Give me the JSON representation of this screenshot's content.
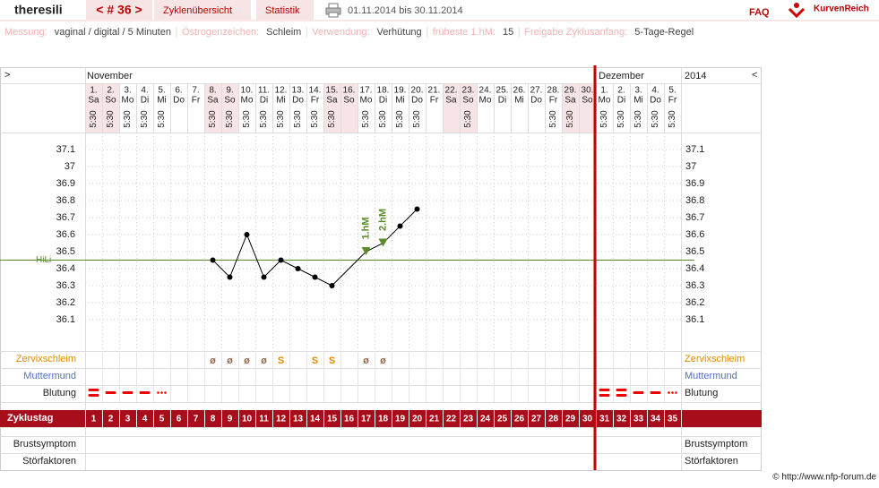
{
  "header": {
    "user": "theresili",
    "cycle_nav": "< # 36 >",
    "tabs": [
      "Zyklenübersicht",
      "Statistik"
    ],
    "period": "01.11.2014 bis 30.11.2014",
    "faq": "FAQ",
    "logo": "KurvenReich"
  },
  "settings": [
    {
      "label": "Messung:",
      "value": "vaginal / digital / 5 Minuten"
    },
    {
      "label": "Östrogenzeichen:",
      "value": "Schleim"
    },
    {
      "label": "Verwendung:",
      "value": "Verhütung"
    },
    {
      "label": "früheste 1.hM:",
      "value": 15
    },
    {
      "label": "Freigabe Zyklusanfang:",
      "value": "5-Tage-Regel"
    }
  ],
  "table": {
    "expand_left": ">",
    "expand_right": "<",
    "months": [
      "November",
      "Dezember"
    ],
    "year": "2014",
    "days": [
      {
        "d": "1.",
        "wd": "Sa",
        "t": "5:30"
      },
      {
        "d": "2.",
        "wd": "So",
        "t": "5:30"
      },
      {
        "d": "3.",
        "wd": "Mo",
        "t": "5:30"
      },
      {
        "d": "4.",
        "wd": "Di",
        "t": "5:30"
      },
      {
        "d": "5.",
        "wd": "Mi",
        "t": "5:30"
      },
      {
        "d": "6.",
        "wd": "Do"
      },
      {
        "d": "7.",
        "wd": "Fr"
      },
      {
        "d": "8.",
        "wd": "Sa",
        "t": "5:30"
      },
      {
        "d": "9.",
        "wd": "So",
        "t": "5:30"
      },
      {
        "d": "10.",
        "wd": "Mo",
        "t": "5:30"
      },
      {
        "d": "11.",
        "wd": "Di",
        "t": "5:30"
      },
      {
        "d": "12.",
        "wd": "Mi",
        "t": "5:30"
      },
      {
        "d": "13.",
        "wd": "Do",
        "t": "5:30"
      },
      {
        "d": "14.",
        "wd": "Fr",
        "t": "5:30"
      },
      {
        "d": "15.",
        "wd": "Sa",
        "t": "5:30"
      },
      {
        "d": "16.",
        "wd": "So"
      },
      {
        "d": "17.",
        "wd": "Mo",
        "t": "5:30"
      },
      {
        "d": "18.",
        "wd": "Di",
        "t": "5:30"
      },
      {
        "d": "19.",
        "wd": "Mi",
        "t": "5:30"
      },
      {
        "d": "20.",
        "wd": "Do",
        "t": "5:30"
      },
      {
        "d": "21.",
        "wd": "Fr"
      },
      {
        "d": "22.",
        "wd": "Sa"
      },
      {
        "d": "23.",
        "wd": "So",
        "t": "5:30"
      },
      {
        "d": "24.",
        "wd": "Mo"
      },
      {
        "d": "25.",
        "wd": "Di"
      },
      {
        "d": "26.",
        "wd": "Mi"
      },
      {
        "d": "27.",
        "wd": "Do"
      },
      {
        "d": "28.",
        "wd": "Fr",
        "t": "5:30"
      },
      {
        "d": "29.",
        "wd": "Sa",
        "t": "5:30"
      },
      {
        "d": "30.",
        "wd": "So"
      },
      {
        "d": "1.",
        "wd": "Mo",
        "t": "5:30"
      },
      {
        "d": "2.",
        "wd": "Di",
        "t": "5:30"
      },
      {
        "d": "3.",
        "wd": "Mi",
        "t": "5:30"
      },
      {
        "d": "4.",
        "wd": "Do",
        "t": "5:30"
      },
      {
        "d": "5.",
        "wd": "Fr",
        "t": "5:30"
      }
    ],
    "row_labels": {
      "mucus": "Zervixschleim",
      "cervix": "Muttermund",
      "bleeding": "Blutung",
      "cycle_day": "Zyklustag",
      "breast": "Brustsymptom",
      "disturb": "Störfaktoren"
    },
    "mucus": [
      null,
      null,
      null,
      null,
      null,
      null,
      null,
      "ø",
      "ø",
      "ø",
      "ø",
      "S",
      null,
      "S",
      "S",
      null,
      "ø",
      "ø",
      null,
      null,
      null,
      null,
      null,
      null,
      null,
      null,
      null,
      null,
      null,
      null,
      null,
      null,
      null,
      null,
      null
    ],
    "bleeding": [
      3,
      2,
      2,
      2,
      1,
      null,
      null,
      null,
      null,
      null,
      null,
      null,
      null,
      null,
      null,
      null,
      null,
      null,
      null,
      null,
      null,
      null,
      null,
      null,
      null,
      null,
      null,
      null,
      null,
      null,
      3,
      3,
      2,
      2,
      1
    ],
    "cycle_days": [
      1,
      2,
      3,
      4,
      5,
      6,
      7,
      8,
      9,
      10,
      11,
      12,
      13,
      14,
      15,
      16,
      17,
      18,
      19,
      20,
      21,
      22,
      23,
      24,
      25,
      26,
      27,
      28,
      29,
      30,
      31,
      32,
      33,
      34,
      35
    ]
  },
  "chart_data": {
    "type": "line",
    "x": [
      8,
      9,
      10,
      11,
      12,
      13,
      14,
      15,
      17,
      18,
      19,
      20
    ],
    "values": [
      36.45,
      36.35,
      36.6,
      36.35,
      36.45,
      36.4,
      36.35,
      36.3,
      36.5,
      36.55,
      36.65,
      36.75
    ],
    "color": "#000000",
    "xlim": [
      0.5,
      35.5
    ],
    "ylim": [
      36.0,
      37.2
    ],
    "yticks": [
      36.1,
      36.2,
      36.3,
      36.4,
      36.5,
      36.6,
      36.7,
      36.8,
      36.9,
      37,
      37.1
    ],
    "grid": true,
    "coverline": {
      "value": 36.45,
      "label": "HiLi",
      "color": "#5a8a2a"
    },
    "shifts": [
      {
        "x": 17,
        "label": "1.hM"
      },
      {
        "x": 18,
        "label": "2.hM"
      }
    ]
  },
  "footer": "© http://www.nfp-forum.de"
}
